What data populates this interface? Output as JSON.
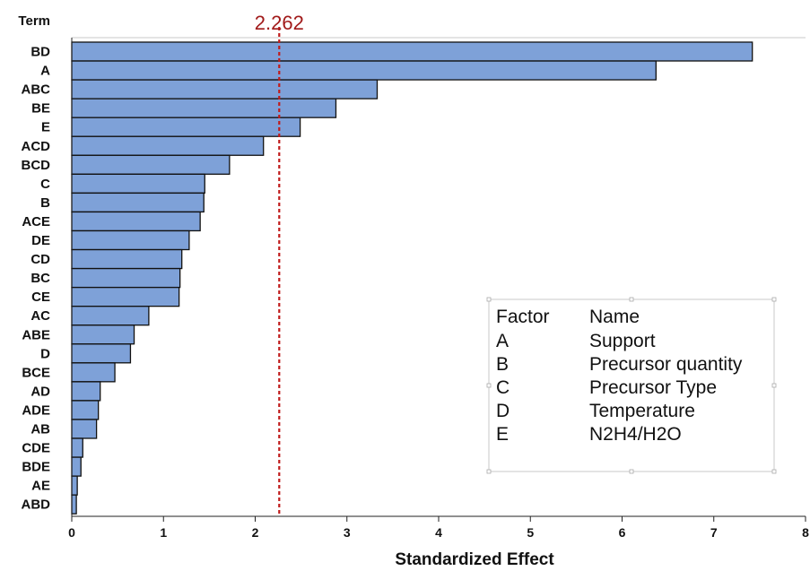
{
  "chart_data": {
    "type": "bar",
    "orientation": "horizontal",
    "terms_header": "Term",
    "categories": [
      "BD",
      "A",
      "ABC",
      "BE",
      "E",
      "ACD",
      "BCD",
      "C",
      "B",
      "ACE",
      "DE",
      "CD",
      "BC",
      "CE",
      "AC",
      "ABE",
      "D",
      "BCE",
      "AD",
      "ADE",
      "AB",
      "CDE",
      "BDE",
      "AE",
      "ABD"
    ],
    "values": [
      7.42,
      6.37,
      3.33,
      2.88,
      2.49,
      2.09,
      1.72,
      1.45,
      1.44,
      1.4,
      1.28,
      1.2,
      1.18,
      1.17,
      0.84,
      0.68,
      0.64,
      0.47,
      0.31,
      0.29,
      0.27,
      0.12,
      0.1,
      0.06,
      0.05
    ],
    "xlabel": "Standardized Effect",
    "xlim": [
      0,
      8
    ],
    "xticks": [
      "0",
      "1",
      "2",
      "3",
      "4",
      "5",
      "6",
      "7",
      "8"
    ],
    "reference_line": {
      "value": 2.262,
      "label": "2.262",
      "color": "#c01a1a"
    },
    "bar_color": "#7ea1d8",
    "bar_edge_color": "#111111",
    "grid": false,
    "legend": {
      "placement": "right",
      "header": [
        "Factor",
        "Name"
      ],
      "rows": [
        [
          "A",
          "Support"
        ],
        [
          "B",
          "Precursor quantity"
        ],
        [
          "C",
          "Precursor Type"
        ],
        [
          "D",
          "Temperature"
        ],
        [
          "E",
          "N2H4/H2O"
        ]
      ]
    }
  }
}
